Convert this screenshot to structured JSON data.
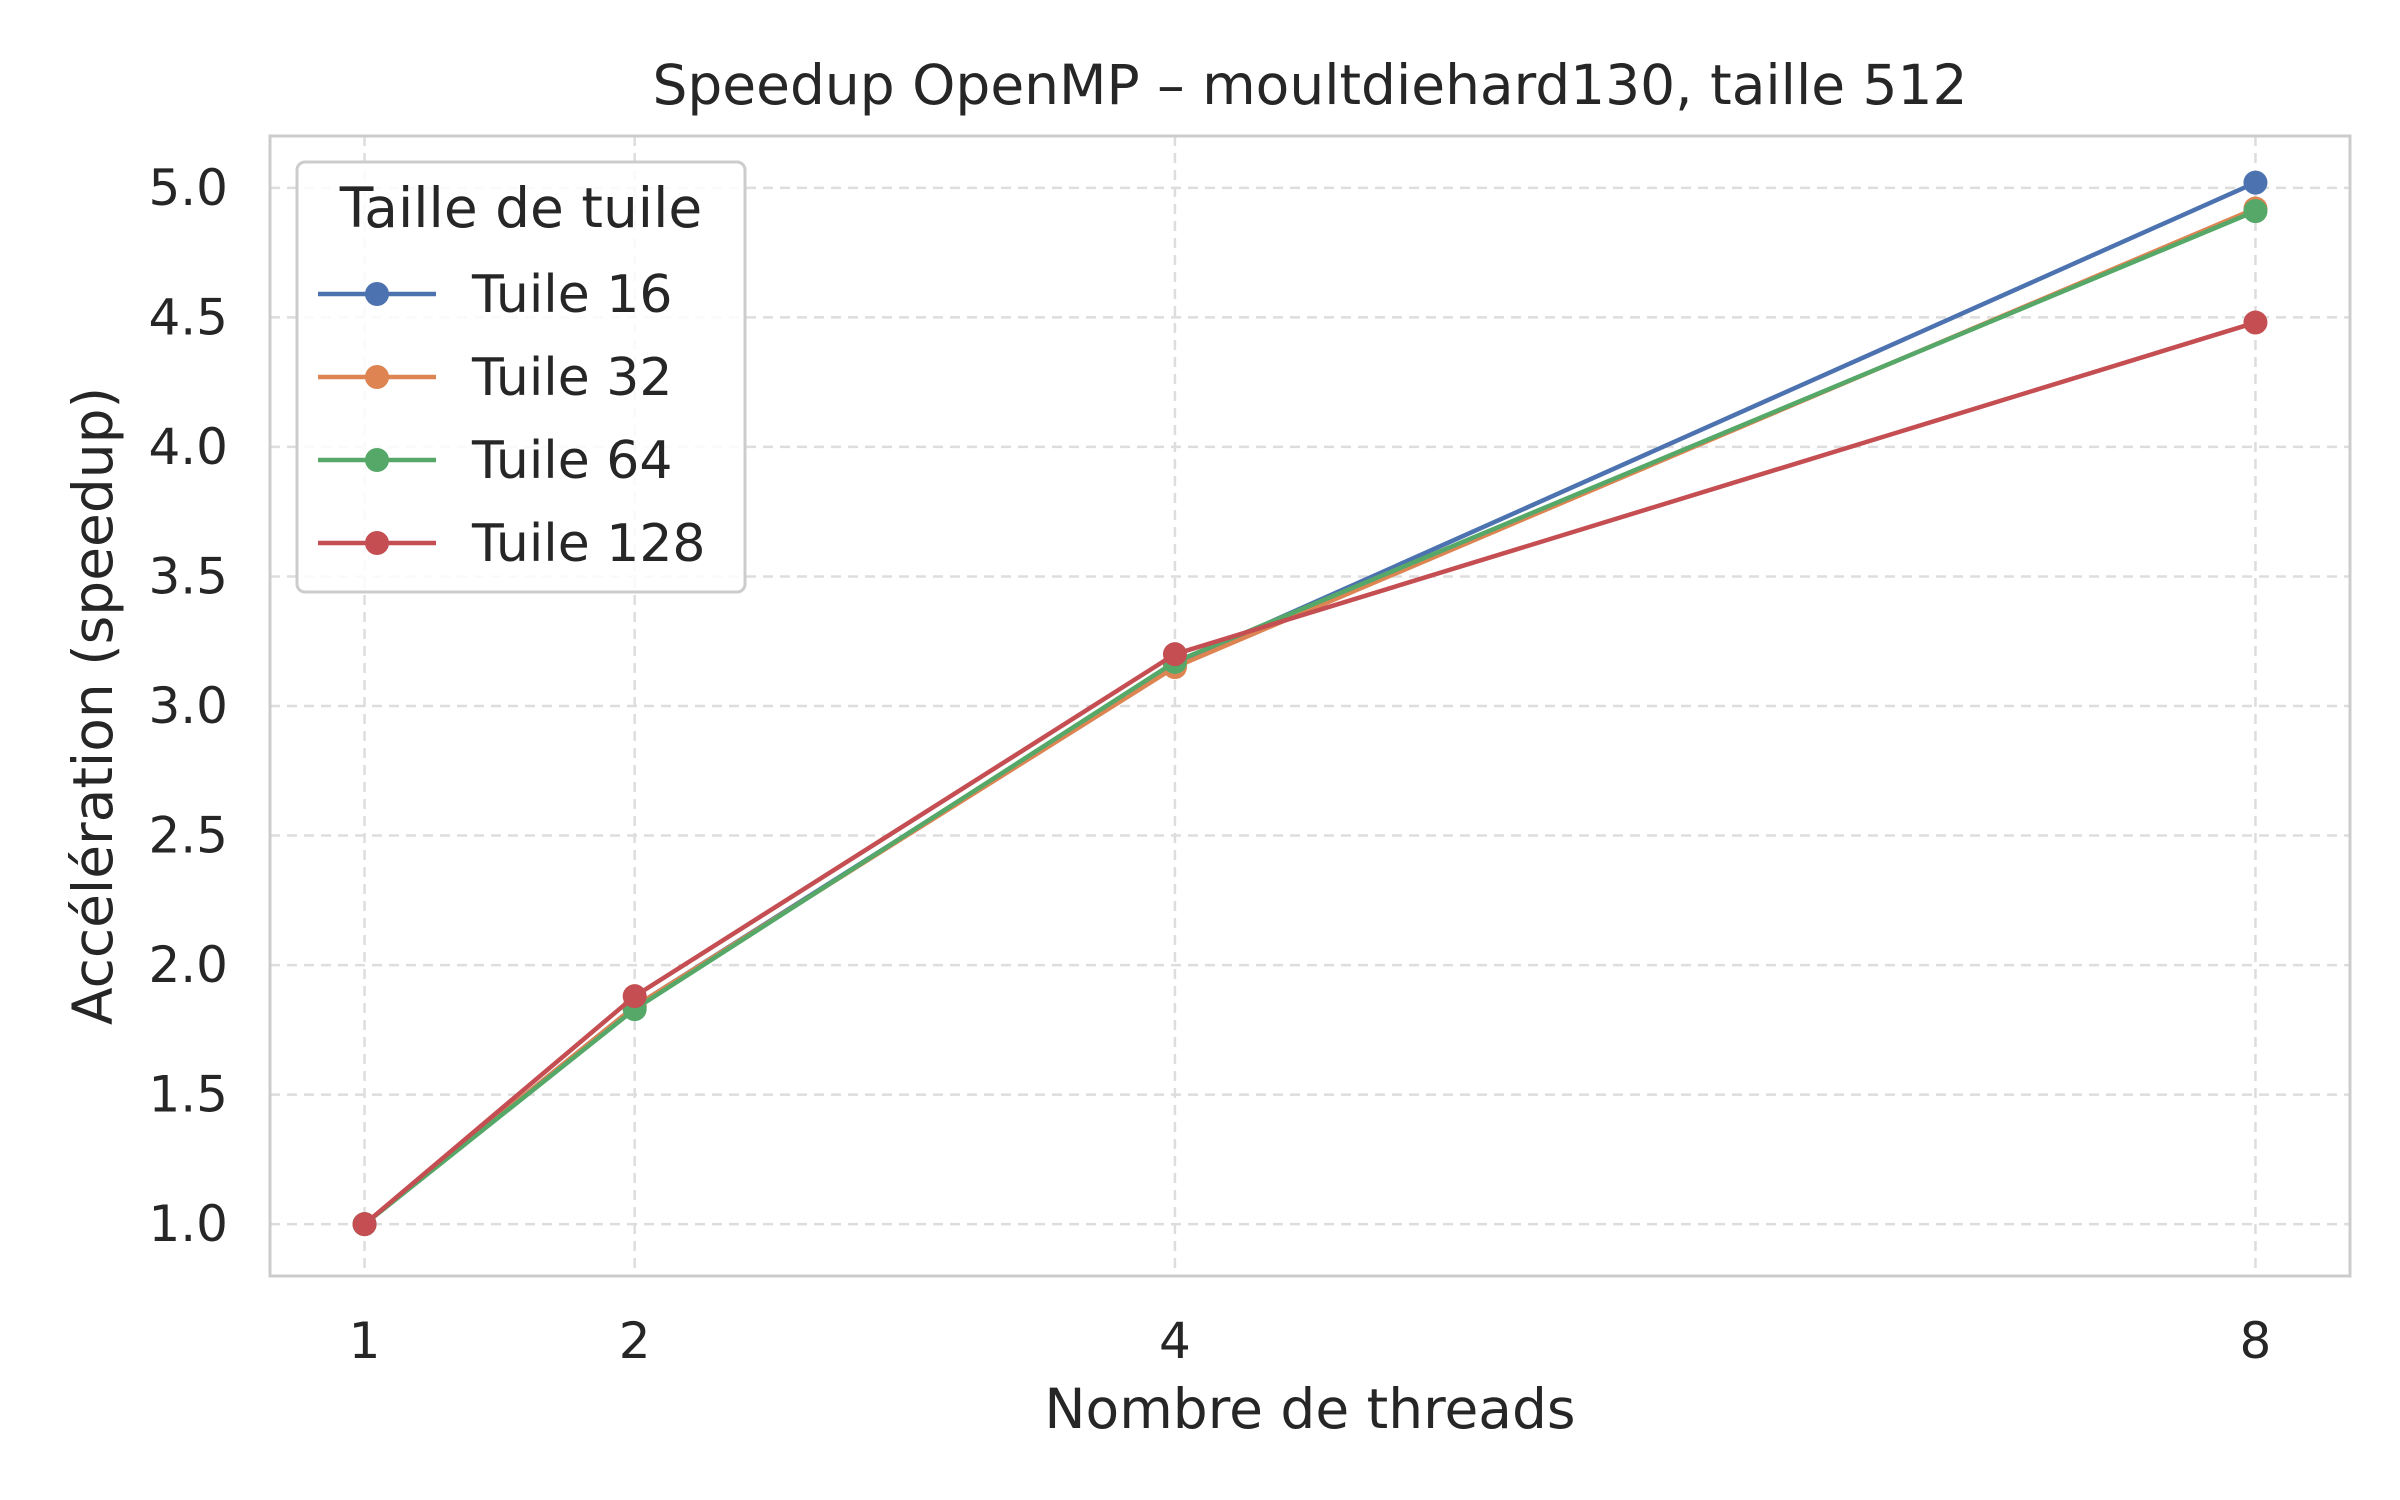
{
  "chart_data": {
    "type": "line",
    "title": "Speedup OpenMP – moultdiehard130, taille 512",
    "xlabel": "Nombre de threads",
    "ylabel": "Accélération (speedup)",
    "x": [
      1,
      2,
      4,
      8
    ],
    "xticks": [
      "1",
      "2",
      "4",
      "8"
    ],
    "yticks": [
      "1.0",
      "1.5",
      "2.0",
      "2.5",
      "3.0",
      "3.5",
      "4.0",
      "4.5",
      "5.0"
    ],
    "xlim": [
      0.65,
      8.35
    ],
    "ylim": [
      0.8,
      5.2
    ],
    "grid": true,
    "legend": {
      "title": "Taille de tuile",
      "position": "top-left"
    },
    "series": [
      {
        "name": "Tuile 16",
        "color": "#4c72b0",
        "values": [
          1.0,
          1.84,
          3.16,
          5.02
        ]
      },
      {
        "name": "Tuile 32",
        "color": "#dd8452",
        "values": [
          1.0,
          1.84,
          3.15,
          4.92
        ]
      },
      {
        "name": "Tuile 64",
        "color": "#55a868",
        "values": [
          1.0,
          1.83,
          3.17,
          4.91
        ]
      },
      {
        "name": "Tuile 128",
        "color": "#c44e52",
        "values": [
          1.0,
          1.88,
          3.2,
          4.48
        ]
      }
    ]
  }
}
